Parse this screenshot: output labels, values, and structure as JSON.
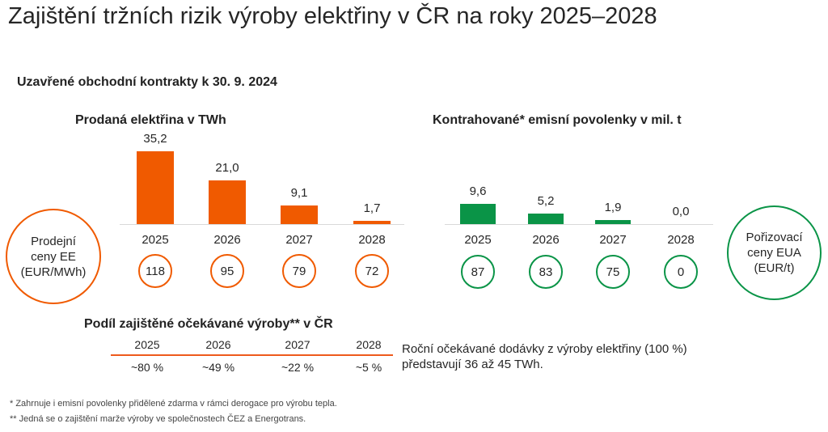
{
  "title": "Zajištění tržních rizik výroby elektřiny v ČR na roky 2025–2028",
  "subtitle": "Uzavřené obchodní kontrakty k 30. 9. 2024",
  "colors": {
    "orange": "#f05a00",
    "green": "#0a9447"
  },
  "chart_data": [
    {
      "type": "bar",
      "title": "Prodaná elektřina v TWh",
      "categories": [
        "2025",
        "2026",
        "2027",
        "2028"
      ],
      "values": [
        35.2,
        21.0,
        9.1,
        1.7
      ],
      "value_labels": [
        "35,2",
        "21,0",
        "9,1",
        "1,7"
      ],
      "color": "#f05a00",
      "ylim": [
        0,
        35.2
      ]
    },
    {
      "type": "bar",
      "title": "Kontrahované* emisní povolenky v mil. t",
      "categories": [
        "2025",
        "2026",
        "2027",
        "2028"
      ],
      "values": [
        9.6,
        5.2,
        1.9,
        0.0
      ],
      "value_labels": [
        "9,6",
        "5,2",
        "1,9",
        "0,0"
      ],
      "color": "#0a9447",
      "ylim": [
        0,
        35.2
      ]
    }
  ],
  "left_circle": {
    "line1": "Prodejní",
    "line2": "ceny EE",
    "line3": "(EUR/MWh)"
  },
  "left_prices": [
    "118",
    "95",
    "79",
    "72"
  ],
  "right_circle": {
    "line1": "Pořizovací",
    "line2": "ceny EUA",
    "line3": "(EUR/t)"
  },
  "right_prices": [
    "87",
    "83",
    "75",
    "0"
  ],
  "table": {
    "title": "Podíl zajištěné očekávané výroby** v ČR",
    "headers": [
      "2025",
      "2026",
      "2027",
      "2028"
    ],
    "values": [
      "~80 %",
      "~49 %",
      "~22 %",
      "~5 %"
    ]
  },
  "note": "Roční očekávané dodávky z výroby elektřiny (100 %) představují 36 až 45 TWh.",
  "footnotes": [
    "*   Zahrnuje i emisní povolenky přidělené zdarma v rámci derogace pro výrobu tepla.",
    "** Jedná se o zajištění marže výroby ve společnostech ČEZ a Energotrans."
  ]
}
